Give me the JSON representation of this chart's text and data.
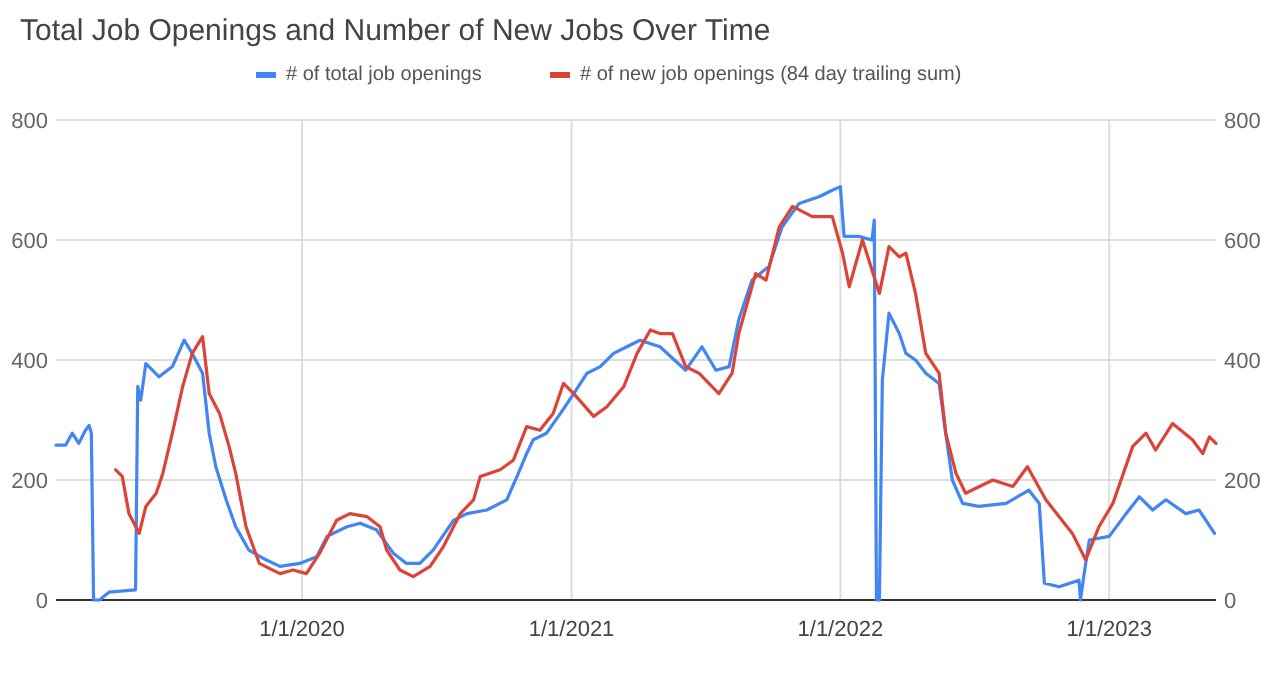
{
  "chart_data": {
    "type": "line",
    "title": "Total Job Openings and Number of New Jobs Over Time",
    "xlim": [
      "2019-02-01",
      "2023-05-26"
    ],
    "xticks": [
      {
        "value": "2020-01-01",
        "label": "1/1/2020"
      },
      {
        "value": "2021-01-01",
        "label": "1/1/2021"
      },
      {
        "value": "2022-01-01",
        "label": "1/1/2022"
      },
      {
        "value": "2023-01-01",
        "label": "1/1/2023"
      }
    ],
    "ylim": [
      0,
      800
    ],
    "yticks": [
      0,
      200,
      400,
      600,
      800
    ],
    "y2lim": [
      0,
      800
    ],
    "y2ticks": [
      0,
      200,
      400,
      600,
      800
    ],
    "grid": true,
    "legend": "top",
    "marker": "none",
    "line_style": "solid",
    "series": [
      {
        "name": "# of total job openings",
        "color": "#4285f4",
        "x": [
          "2019-02-01",
          "2019-02-14",
          "2019-02-23",
          "2019-03-04",
          "2019-03-13",
          "2019-03-18",
          "2019-03-21",
          "2019-03-24",
          "2019-04-01",
          "2019-04-14",
          "2019-05-20",
          "2019-05-23",
          "2019-05-27",
          "2019-06-03",
          "2019-06-21",
          "2019-07-09",
          "2019-07-25",
          "2019-08-05",
          "2019-08-19",
          "2019-08-28",
          "2019-09-06",
          "2019-09-20",
          "2019-10-03",
          "2019-10-21",
          "2019-11-13",
          "2019-12-02",
          "2019-12-29",
          "2020-01-21",
          "2020-02-04",
          "2020-03-02",
          "2020-03-20",
          "2020-04-11",
          "2020-05-04",
          "2020-05-22",
          "2020-06-09",
          "2020-06-27",
          "2020-07-25",
          "2020-08-12",
          "2020-09-08",
          "2020-10-05",
          "2020-10-19",
          "2020-11-01",
          "2020-11-10",
          "2020-11-28",
          "2020-12-17",
          "2021-01-04",
          "2021-01-22",
          "2021-02-09",
          "2021-02-27",
          "2021-03-17",
          "2021-04-04",
          "2021-05-01",
          "2021-06-05",
          "2021-06-27",
          "2021-07-16",
          "2021-08-03",
          "2021-08-16",
          "2021-09-03",
          "2021-09-26",
          "2021-10-14",
          "2021-11-06",
          "2021-12-03",
          "2021-12-21",
          "2022-01-01",
          "2022-01-06",
          "2022-01-26",
          "2022-02-13",
          "2022-02-16",
          "2022-02-19",
          "2022-02-23",
          "2022-02-27",
          "2022-03-08",
          "2022-03-22",
          "2022-03-31",
          "2022-04-13",
          "2022-04-27",
          "2022-05-15",
          "2022-05-24",
          "2022-06-02",
          "2022-06-16",
          "2022-07-08",
          "2022-08-14",
          "2022-09-14",
          "2022-09-28",
          "2022-10-05",
          "2022-10-25",
          "2022-11-21",
          "2022-11-23",
          "2022-11-28",
          "2022-12-05",
          "2023-01-01",
          "2023-01-24",
          "2023-02-11",
          "2023-03-01",
          "2023-03-19",
          "2023-04-15",
          "2023-05-03",
          "2023-05-24"
        ],
        "values": [
          258,
          258,
          278,
          261,
          283,
          291,
          278,
          0,
          0,
          13,
          17,
          356,
          333,
          394,
          372,
          389,
          433,
          411,
          378,
          278,
          222,
          167,
          122,
          83,
          67,
          56,
          61,
          72,
          106,
          122,
          128,
          117,
          78,
          61,
          61,
          83,
          133,
          144,
          150,
          167,
          206,
          244,
          267,
          278,
          311,
          344,
          378,
          389,
          411,
          422,
          433,
          422,
          383,
          422,
          383,
          389,
          467,
          533,
          556,
          622,
          661,
          672,
          683,
          689,
          606,
          606,
          600,
          633,
          0,
          0,
          367,
          478,
          444,
          411,
          400,
          378,
          361,
          278,
          200,
          161,
          156,
          161,
          183,
          161,
          28,
          22,
          33,
          0,
          44,
          100,
          106,
          144,
          172,
          150,
          167,
          144,
          150,
          111
        ]
      },
      {
        "name": "# of new job openings (84 day trailing sum)",
        "color": "#db4437",
        "x": [
          "2019-04-23",
          "2019-05-02",
          "2019-05-11",
          "2019-05-25",
          "2019-06-03",
          "2019-06-17",
          "2019-06-26",
          "2019-07-09",
          "2019-07-23",
          "2019-08-05",
          "2019-08-19",
          "2019-08-28",
          "2019-09-11",
          "2019-09-24",
          "2019-10-03",
          "2019-10-17",
          "2019-11-04",
          "2019-12-02",
          "2019-12-20",
          "2020-01-07",
          "2020-01-25",
          "2020-02-17",
          "2020-03-06",
          "2020-03-29",
          "2020-04-16",
          "2020-04-25",
          "2020-05-13",
          "2020-05-31",
          "2020-06-23",
          "2020-07-11",
          "2020-08-03",
          "2020-08-21",
          "2020-08-30",
          "2020-09-26",
          "2020-10-14",
          "2020-11-01",
          "2020-11-19",
          "2020-12-07",
          "2020-12-21",
          "2021-01-04",
          "2021-01-31",
          "2021-02-18",
          "2021-03-13",
          "2021-03-31",
          "2021-04-18",
          "2021-05-01",
          "2021-05-18",
          "2021-06-05",
          "2021-06-23",
          "2021-07-20",
          "2021-08-07",
          "2021-08-16",
          "2021-09-08",
          "2021-09-22",
          "2021-10-10",
          "2021-10-28",
          "2021-11-24",
          "2021-12-21",
          "2022-01-04",
          "2022-01-13",
          "2022-01-31",
          "2022-02-23",
          "2022-03-08",
          "2022-03-22",
          "2022-03-31",
          "2022-04-13",
          "2022-04-27",
          "2022-05-15",
          "2022-05-24",
          "2022-06-07",
          "2022-06-20",
          "2022-07-27",
          "2022-08-23",
          "2022-09-12",
          "2022-10-07",
          "2022-11-12",
          "2022-11-30",
          "2022-12-18",
          "2023-01-06",
          "2023-02-02",
          "2023-02-20",
          "2023-03-05",
          "2023-03-28",
          "2023-04-24",
          "2023-05-08",
          "2023-05-17",
          "2023-05-26"
        ],
        "values": [
          217,
          206,
          144,
          111,
          156,
          178,
          211,
          278,
          356,
          411,
          439,
          344,
          311,
          256,
          211,
          122,
          61,
          44,
          50,
          44,
          78,
          133,
          144,
          139,
          122,
          83,
          50,
          39,
          56,
          89,
          144,
          167,
          206,
          217,
          233,
          289,
          283,
          311,
          361,
          344,
          306,
          322,
          356,
          411,
          450,
          444,
          444,
          389,
          378,
          344,
          378,
          444,
          544,
          533,
          622,
          656,
          639,
          639,
          578,
          522,
          600,
          511,
          589,
          572,
          578,
          511,
          411,
          378,
          278,
          211,
          178,
          200,
          189,
          222,
          167,
          111,
          67,
          122,
          161,
          256,
          278,
          250,
          294,
          267,
          244,
          272,
          261
        ]
      }
    ]
  }
}
